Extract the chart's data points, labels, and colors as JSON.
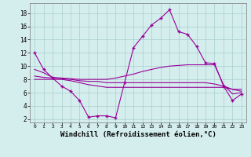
{
  "x": [
    0,
    1,
    2,
    3,
    4,
    5,
    6,
    7,
    8,
    9,
    10,
    11,
    12,
    13,
    14,
    15,
    16,
    17,
    18,
    19,
    20,
    21,
    22,
    23
  ],
  "line1_main": [
    12,
    9.5,
    8.2,
    7.0,
    6.2,
    4.8,
    2.3,
    2.5,
    2.5,
    2.2,
    7.5,
    12.8,
    14.5,
    16.2,
    17.2,
    18.5,
    15.2,
    14.8,
    13.0,
    10.5,
    10.4,
    7.0,
    4.8,
    5.8
  ],
  "line2_flat_high": [
    9.5,
    9.0,
    8.3,
    8.2,
    8.1,
    8.0,
    8.0,
    8.0,
    8.0,
    8.2,
    8.5,
    8.8,
    9.2,
    9.5,
    9.8,
    10.0,
    10.1,
    10.2,
    10.2,
    10.2,
    10.2,
    7.2,
    5.8,
    6.0
  ],
  "line3_flat_mid": [
    8.5,
    8.3,
    8.2,
    8.1,
    8.0,
    7.8,
    7.7,
    7.7,
    7.5,
    7.5,
    7.5,
    7.5,
    7.5,
    7.5,
    7.5,
    7.5,
    7.5,
    7.5,
    7.5,
    7.5,
    7.3,
    7.0,
    6.5,
    6.5
  ],
  "line4_flat_low": [
    8.0,
    8.0,
    8.0,
    8.0,
    7.8,
    7.5,
    7.2,
    7.0,
    6.8,
    6.8,
    6.8,
    6.8,
    6.8,
    6.8,
    6.8,
    6.8,
    6.8,
    6.8,
    6.8,
    6.8,
    6.8,
    6.8,
    6.5,
    6.2
  ],
  "line_color": "#990099",
  "bg_color": "#d4eeed",
  "grid_color": "#aacece",
  "xlabel": "Windchill (Refroidissement éolien,°C)",
  "xlabel_fontsize": 6.5,
  "ylim": [
    1.5,
    19.5
  ],
  "xlim": [
    -0.5,
    23.5
  ],
  "yticks": [
    2,
    4,
    6,
    8,
    10,
    12,
    14,
    16,
    18
  ],
  "xticks": [
    0,
    1,
    2,
    3,
    4,
    5,
    6,
    7,
    8,
    9,
    10,
    11,
    12,
    13,
    14,
    15,
    16,
    17,
    18,
    19,
    20,
    21,
    22,
    23
  ]
}
